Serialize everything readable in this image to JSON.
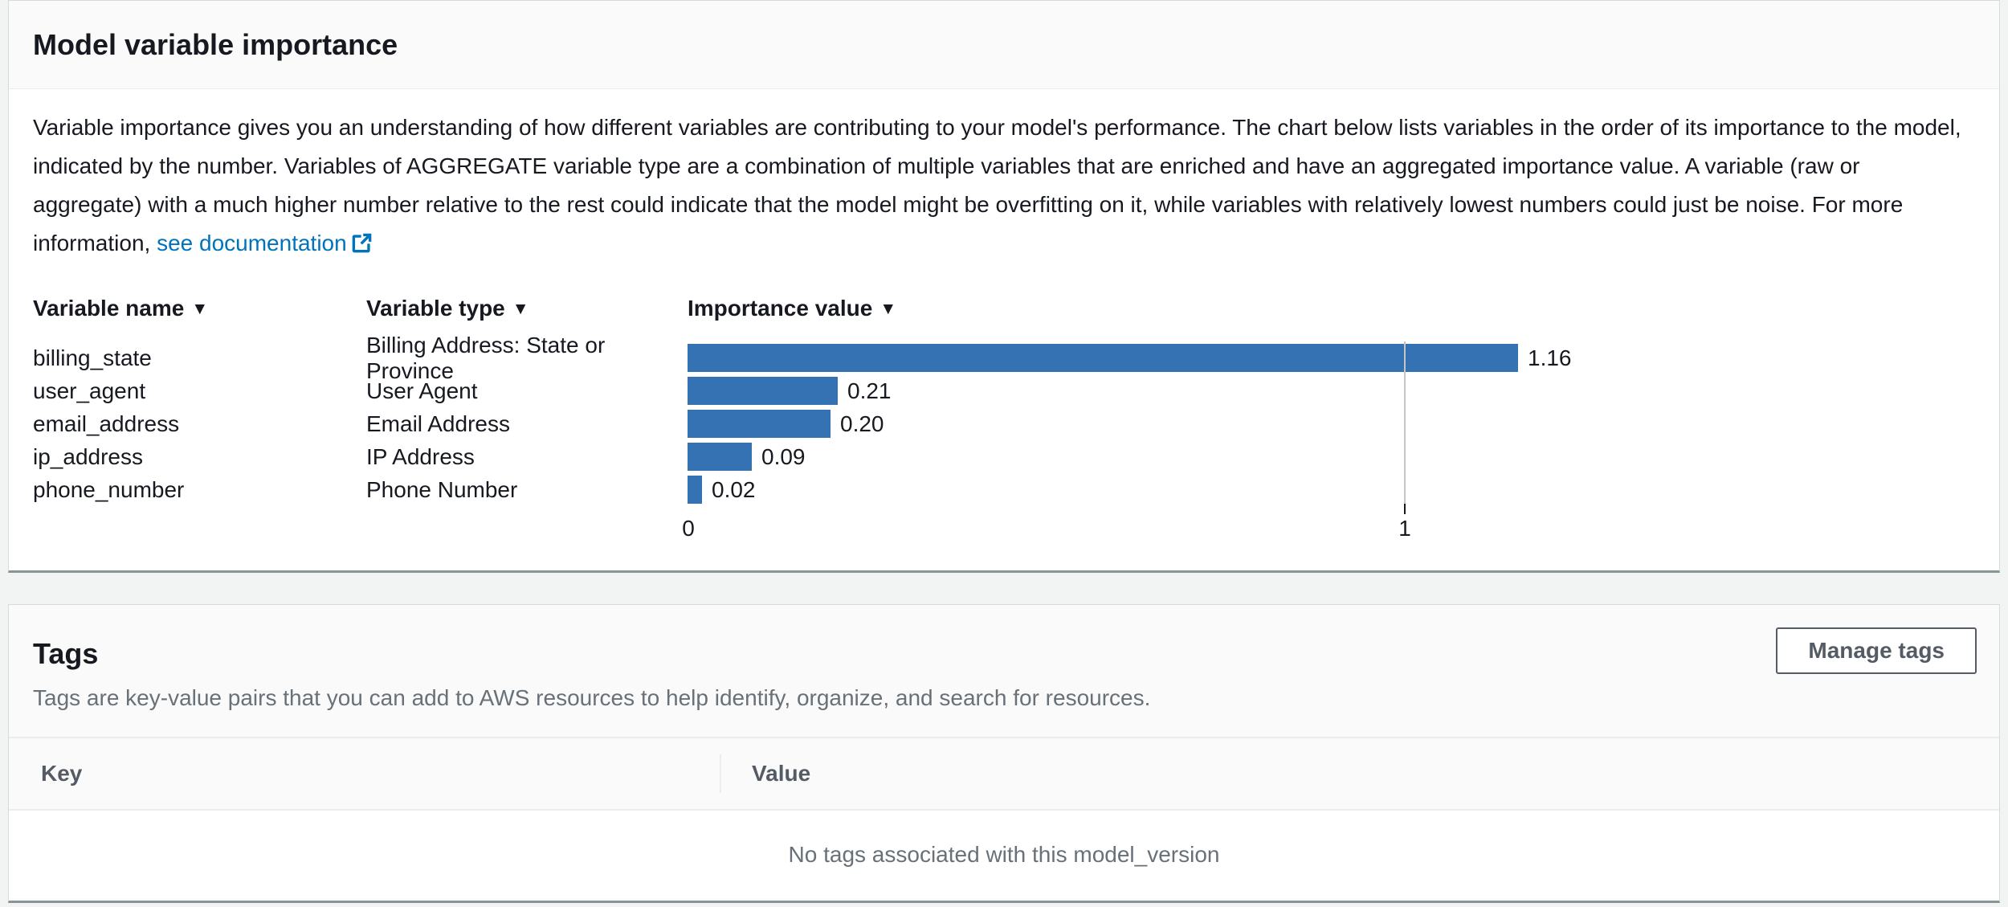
{
  "importance_panel": {
    "title": "Model variable importance",
    "description": "Variable importance gives you an understanding of how different variables are contributing to your model's performance. The chart below lists variables in the order of its importance to the model, indicated by the number. Variables of AGGREGATE variable type are a combination of multiple variables that are enriched and have an aggregated importance value. A variable (raw or aggregate) with a much higher number relative to the rest could indicate that the model might be overfitting on it, while variables with relatively lowest numbers could just be noise. For more information, ",
    "link_label": "see documentation"
  },
  "chart_data": {
    "type": "bar",
    "orientation": "horizontal",
    "title": "Model variable importance",
    "columns": [
      {
        "label": "Variable name"
      },
      {
        "label": "Variable type"
      },
      {
        "label": "Importance value"
      }
    ],
    "rows": [
      {
        "name": "billing_state",
        "variable_type": "Billing Address: State or Province",
        "value": 1.16,
        "value_label": "1.16"
      },
      {
        "name": "user_agent",
        "variable_type": "User Agent",
        "value": 0.21,
        "value_label": "0.21"
      },
      {
        "name": "email_address",
        "variable_type": "Email Address",
        "value": 0.2,
        "value_label": "0.20"
      },
      {
        "name": "ip_address",
        "variable_type": "IP Address",
        "value": 0.09,
        "value_label": "0.09"
      },
      {
        "name": "phone_number",
        "variable_type": "Phone Number",
        "value": 0.02,
        "value_label": "0.02"
      }
    ],
    "xlim": [
      0,
      1.8
    ],
    "xticks": [
      {
        "value": 0,
        "label": "0"
      },
      {
        "value": 1,
        "label": "1"
      }
    ],
    "grid": true,
    "legend": false,
    "bar_color": "#3572b4"
  },
  "tags_panel": {
    "title": "Tags",
    "description": "Tags are key-value pairs that you can add to AWS resources to help identify, organize, and search for resources.",
    "manage_button_label": "Manage tags",
    "table": {
      "columns": [
        {
          "label": "Key"
        },
        {
          "label": "Value"
        }
      ],
      "empty_message": "No tags associated with this model_version"
    }
  },
  "colors": {
    "bar": "#3572b4",
    "link": "#0073bb",
    "card_bottom_border": "#879596",
    "header_bg": "#fafafa",
    "page_bg": "#f2f3f3"
  }
}
